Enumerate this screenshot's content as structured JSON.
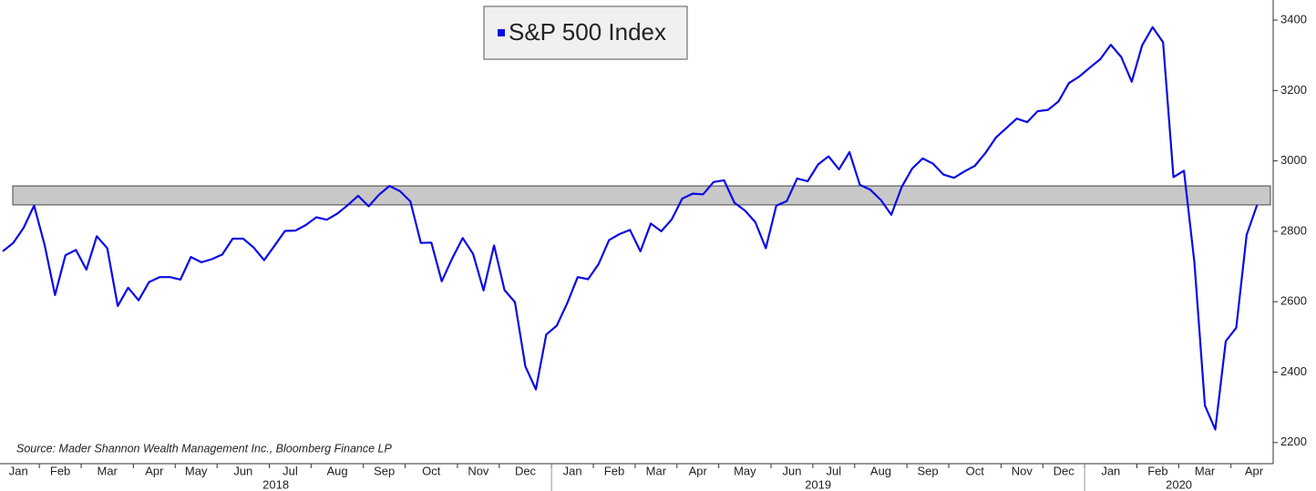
{
  "chart_data": {
    "type": "line",
    "legend_position": "top-center",
    "source": "Source: Mader Shannon Wealth Management Inc., Bloomberg Finance LP",
    "years": [
      "2018",
      "2019",
      "2020"
    ],
    "categories": [
      "Jan",
      null,
      null,
      null,
      "Feb",
      null,
      null,
      null,
      "Mar",
      null,
      null,
      null,
      null,
      "Apr",
      null,
      null,
      null,
      "May",
      null,
      null,
      null,
      "Jun",
      null,
      null,
      null,
      null,
      "Jul",
      null,
      null,
      null,
      "Aug",
      null,
      null,
      null,
      null,
      "Sep",
      null,
      null,
      null,
      "Oct",
      null,
      null,
      null,
      null,
      "Nov",
      null,
      null,
      null,
      "Dec",
      null,
      null,
      null,
      null,
      "Jan",
      null,
      null,
      null,
      "Feb",
      null,
      null,
      null,
      "Mar",
      null,
      null,
      null,
      "Apr",
      null,
      null,
      null,
      "May",
      null,
      null,
      null,
      null,
      "Jun",
      null,
      null,
      null,
      "Jul",
      null,
      null,
      null,
      "Aug",
      null,
      null,
      null,
      null,
      "Sep",
      null,
      null,
      null,
      "Oct",
      null,
      null,
      null,
      null,
      "Nov",
      null,
      null,
      null,
      "Dec",
      null,
      null,
      null,
      "Jan",
      null,
      null,
      null,
      null,
      "Feb",
      null,
      null,
      null,
      "Mar",
      null,
      null,
      null,
      null,
      "Apr",
      null,
      null
    ],
    "series": [
      {
        "name": "S&P 500 Index",
        "color": "#0a0ae6",
        "values": [
          2743,
          2767,
          2810,
          2873,
          2762,
          2619,
          2732,
          2747,
          2691,
          2786,
          2752,
          2588,
          2640,
          2604,
          2656,
          2670,
          2670,
          2663,
          2727,
          2712,
          2721,
          2734,
          2779,
          2779,
          2754,
          2718,
          2759,
          2801,
          2802,
          2818,
          2840,
          2833,
          2850,
          2874,
          2901,
          2871,
          2904,
          2929,
          2914,
          2885,
          2767,
          2768,
          2658,
          2723,
          2781,
          2736,
          2632,
          2760,
          2633,
          2599,
          2416,
          2351,
          2507,
          2532,
          2596,
          2670,
          2664,
          2707,
          2775,
          2792,
          2804,
          2743,
          2822,
          2800,
          2834,
          2893,
          2907,
          2905,
          2940,
          2945,
          2881,
          2859,
          2826,
          2752,
          2873,
          2886,
          2950,
          2942,
          2990,
          3013,
          2976,
          3025,
          2932,
          2918,
          2889,
          2847,
          2926,
          2978,
          3007,
          2992,
          2961,
          2952,
          2970,
          2986,
          3022,
          3066,
          3093,
          3120,
          3110,
          3141,
          3145,
          3169,
          3221,
          3240,
          3265,
          3289,
          3330,
          3295,
          3225,
          3328,
          3380,
          3337,
          2954,
          2972,
          2711,
          2305,
          2237,
          2488,
          2526,
          2790,
          2875
        ]
      }
    ],
    "band": [
      2875,
      2929
    ],
    "band_color": "#c8c8c8",
    "ylim": [
      2140,
      3457
    ],
    "yticks": [
      2200,
      2400,
      2600,
      2800,
      3000,
      3200,
      3400
    ]
  }
}
